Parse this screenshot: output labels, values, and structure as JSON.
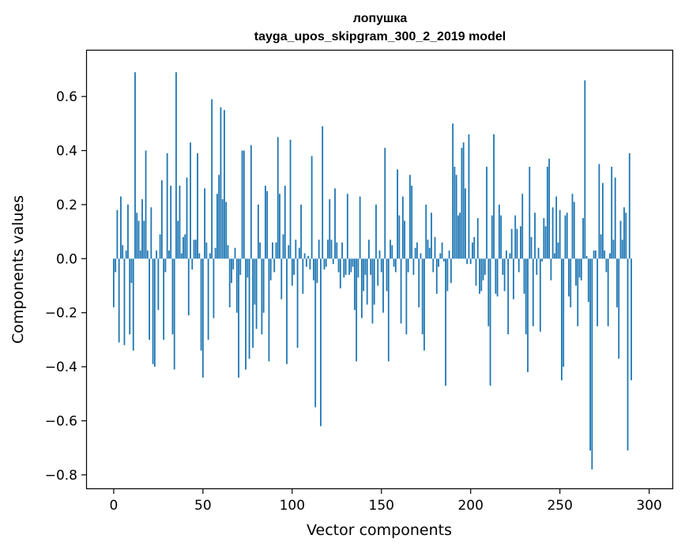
{
  "chart_data": {
    "type": "bar",
    "title": "лопушка",
    "subtitle": "tayga_upos_skipgram_300_2_2019 model",
    "xlabel": "Vector components",
    "ylabel": "Components values",
    "xlim": [
      -15,
      313
    ],
    "ylim": [
      -0.85,
      0.77
    ],
    "xticks": [
      0,
      50,
      100,
      150,
      200,
      250,
      300
    ],
    "xtick_labels": [
      "0",
      "50",
      "100",
      "150",
      "200",
      "250",
      "300"
    ],
    "yticks": [
      -0.8,
      -0.6,
      -0.4,
      -0.2,
      0.0,
      0.2,
      0.4,
      0.6
    ],
    "ytick_labels": [
      "−0.8",
      "−0.6",
      "−0.4",
      "−0.2",
      "0.0",
      "0.2",
      "0.4",
      "0.6"
    ],
    "bar_color": "#1f77b4",
    "grid": false,
    "values": [
      -0.18,
      -0.05,
      0.18,
      -0.31,
      0.23,
      0.05,
      -0.32,
      0.03,
      0.2,
      -0.28,
      -0.09,
      -0.34,
      0.69,
      0.17,
      0.14,
      0.03,
      0.22,
      0.14,
      0.4,
      0.03,
      -0.3,
      0.19,
      -0.39,
      -0.4,
      0.03,
      -0.19,
      0.09,
      0.29,
      -0.3,
      -0.05,
      0.39,
      0.03,
      0.27,
      -0.28,
      -0.41,
      0.69,
      0.14,
      0.27,
      0.02,
      0.08,
      0.09,
      0.3,
      -0.21,
      0.43,
      -0.04,
      0.07,
      0.07,
      0.39,
      0.02,
      -0.34,
      -0.44,
      0.26,
      0.06,
      -0.3,
      0.02,
      0.59,
      -0.22,
      0.04,
      0.24,
      0.31,
      0.56,
      0.22,
      0.55,
      0.21,
      0.05,
      -0.18,
      -0.09,
      -0.04,
      0.04,
      -0.2,
      -0.44,
      -0.06,
      0.4,
      0.4,
      -0.41,
      -0.07,
      -0.37,
      0.42,
      -0.33,
      -0.17,
      -0.26,
      0.2,
      0.06,
      -0.28,
      -0.2,
      0.27,
      0.25,
      -0.38,
      -0.08,
      0.06,
      -0.05,
      0.06,
      0.45,
      0.24,
      -0.15,
      0.09,
      0.27,
      -0.39,
      0.05,
      0.44,
      -0.1,
      -0.06,
      0.07,
      -0.33,
      0.04,
      0.2,
      -0.13,
      0.02,
      -0.03,
      0.01,
      -0.04,
      0.38,
      -0.08,
      -0.55,
      -0.09,
      0.07,
      -0.62,
      0.49,
      -0.04,
      -0.03,
      0.07,
      0.22,
      0.07,
      -0.02,
      0.26,
      0.06,
      -0.05,
      -0.11,
      0.06,
      -0.07,
      -0.06,
      0.24,
      -0.06,
      -0.05,
      -0.03,
      -0.19,
      -0.38,
      -0.07,
      0.23,
      -0.22,
      -0.12,
      -0.06,
      -0.17,
      0.07,
      -0.06,
      -0.24,
      -0.17,
      0.2,
      -0.1,
      0.03,
      -0.05,
      -0.2,
      0.41,
      -0.12,
      -0.38,
      0.07,
      0.05,
      -0.03,
      -0.05,
      0.33,
      0.16,
      -0.24,
      0.23,
      0.14,
      -0.28,
      -0.05,
      0.31,
      0.27,
      -0.06,
      0.04,
      0.06,
      -0.18,
      0.02,
      -0.28,
      -0.34,
      0.2,
      0.07,
      0.04,
      0.17,
      -0.05,
      0.08,
      -0.13,
      -0.03,
      0.02,
      0.06,
      -0.01,
      -0.47,
      -0.12,
      0.03,
      -0.09,
      0.5,
      0.34,
      0.31,
      0.16,
      0.17,
      0.41,
      0.43,
      0.26,
      -0.02,
      0.46,
      -0.02,
      0.06,
      0.08,
      -0.1,
      0.15,
      -0.13,
      -0.12,
      -0.08,
      -0.06,
      0.34,
      -0.25,
      -0.47,
      0.16,
      0.46,
      -0.13,
      -0.14,
      0.2,
      0.16,
      -0.06,
      -0.12,
      0.03,
      -0.28,
      0.02,
      0.11,
      -0.15,
      0.16,
      0.11,
      -0.05,
      0.12,
      0.24,
      -0.13,
      -0.28,
      -0.42,
      0.34,
      0.08,
      -0.25,
      0.17,
      -0.06,
      0.04,
      -0.27,
      -0.01,
      0.15,
      0.12,
      0.34,
      0.37,
      -0.08,
      0.19,
      0.02,
      0.23,
      0.06,
      0.18,
      -0.45,
      -0.4,
      0.16,
      0.17,
      -0.14,
      -0.18,
      0.24,
      0.21,
      -0.1,
      -0.25,
      -0.07,
      -0.08,
      0.15,
      0.66,
      0.01,
      -0.16,
      -0.71,
      -0.78,
      0.03,
      0.03,
      -0.25,
      0.35,
      0.09,
      0.28,
      0.03,
      -0.05,
      -0.25,
      0.02,
      0.34,
      0.07,
      0.3,
      -0.18,
      -0.37,
      0.14,
      0.07,
      0.19,
      0.17,
      -0.71,
      0.39,
      -0.45
    ]
  }
}
